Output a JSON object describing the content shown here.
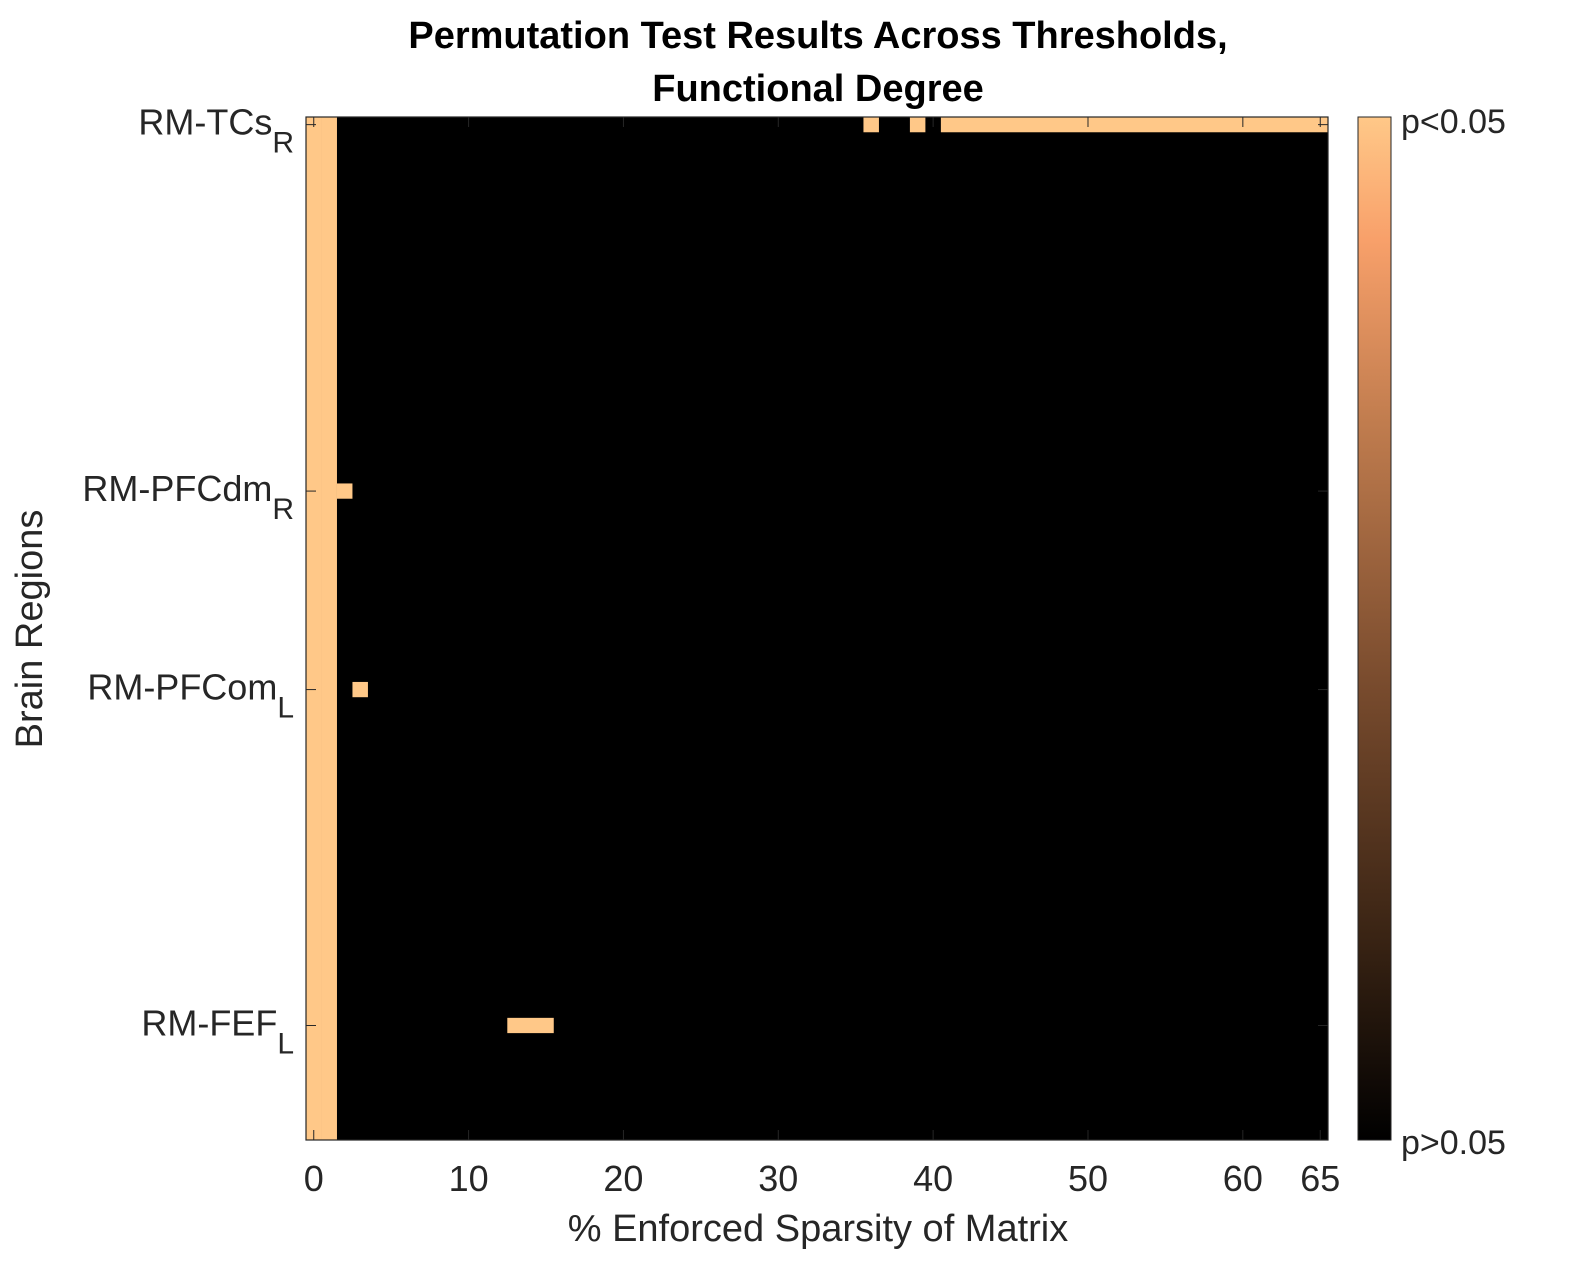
{
  "chart_data": {
    "type": "heatmap",
    "title": [
      "Permutation Test Results Across Thresholds,",
      "Functional Degree"
    ],
    "xlabel": "% Enforced Sparsity of Matrix",
    "ylabel": "Brain Regions",
    "xlim": [
      -0.5,
      65.5
    ],
    "x_ticks": [
      0,
      10,
      20,
      30,
      40,
      50,
      60,
      65
    ],
    "y_ticks": [
      {
        "region": 1,
        "name": "RM-TCs",
        "sub": "R"
      },
      {
        "region": 25,
        "name": "RM-PFCdm",
        "sub": "R"
      },
      {
        "region": 38,
        "name": "RM-PFCom",
        "sub": "L"
      },
      {
        "region": 60,
        "name": "RM-FEF",
        "sub": "L"
      }
    ],
    "n_regions": 67,
    "background_value": "p>0.05",
    "significant_value": "p<0.05",
    "significant_cells": [
      {
        "region": 1,
        "x_from": 36,
        "x_to": 36
      },
      {
        "region": 1,
        "x_from": 39,
        "x_to": 39
      },
      {
        "region": 1,
        "x_from": 41,
        "x_to": 65
      },
      {
        "region": 25,
        "x_from": 2,
        "x_to": 2
      },
      {
        "region": 38,
        "x_from": 3,
        "x_to": 3
      },
      {
        "region": 60,
        "x_from": 13,
        "x_to": 15
      }
    ],
    "significant_columns": [
      0,
      1
    ],
    "colorbar": {
      "top_label": "p<0.05",
      "bottom_label": "p>0.05"
    },
    "colors": {
      "significant": "#FFC888",
      "not_significant": "#000000",
      "colormap": [
        "#000000",
        "#3a2414",
        "#7a4c2e",
        "#c07c4e",
        "#f8a06a",
        "#ffc888"
      ]
    }
  }
}
